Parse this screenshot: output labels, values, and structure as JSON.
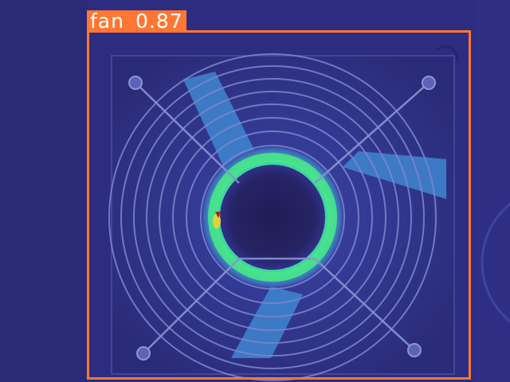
{
  "image": {
    "description_colors": {
      "background": "#2b2c7e",
      "cool": "#3c55b8",
      "mid": "#3fa3d6",
      "warm": "#48e68a",
      "hot": "#e1d23a",
      "hottest": "#a12a18"
    }
  },
  "detections": [
    {
      "label": "fan",
      "confidence": "0.87",
      "color": "#ff7733"
    }
  ]
}
